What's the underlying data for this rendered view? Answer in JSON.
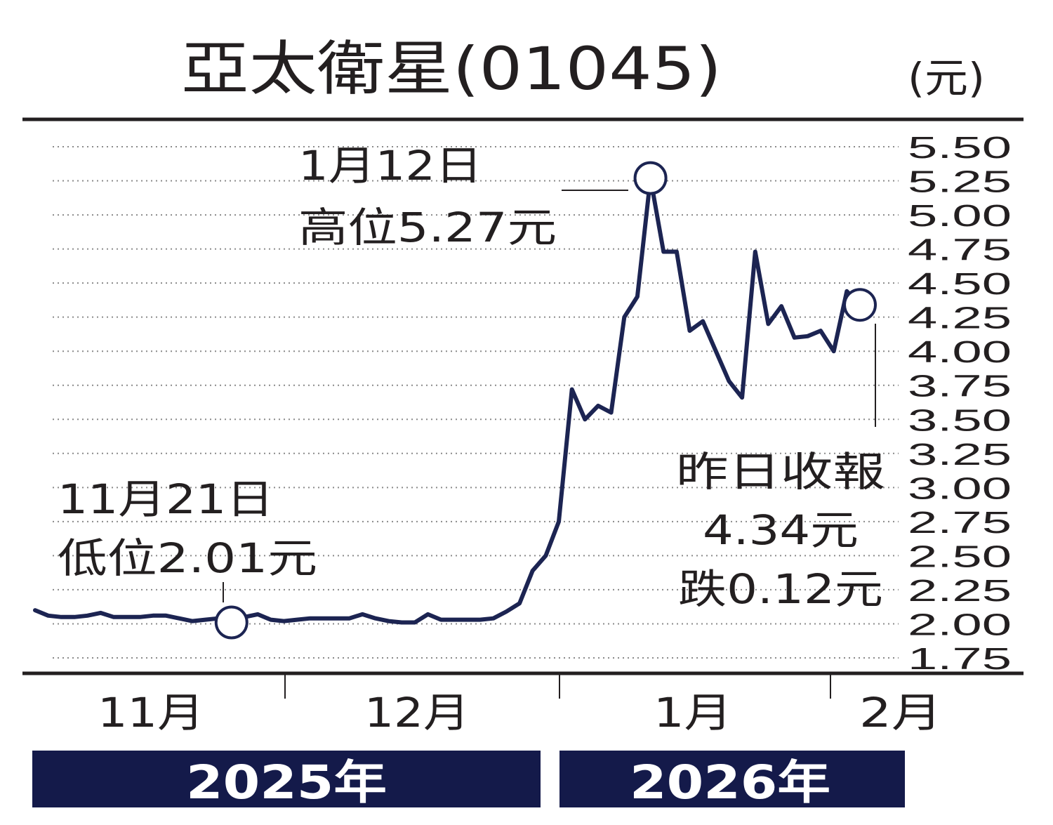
{
  "title": "亞太衛星(01045)",
  "unit": "(元)",
  "colors": {
    "line": "#1c2452",
    "year_band": "#141a4a",
    "text": "#231f20"
  },
  "annotations": {
    "high": {
      "date": "1月12日",
      "text": "高位5.27元"
    },
    "low": {
      "date": "11月21日",
      "text": "低位2.01元"
    },
    "close": {
      "line1": "昨日收報",
      "line2": "4.34元",
      "line3": "跌0.12元"
    }
  },
  "months": [
    "11月",
    "12月",
    "1月",
    "2月"
  ],
  "years": [
    "2025年",
    "2026年"
  ],
  "chart_data": {
    "type": "line",
    "title": "亞太衛星(01045)",
    "ylabel": "(元)",
    "ylim": [
      1.75,
      5.5
    ],
    "yticks": [
      "5.50",
      "5.25",
      "5.00",
      "4.75",
      "4.50",
      "4.25",
      "4.00",
      "3.75",
      "3.50",
      "3.25",
      "3.00",
      "2.75",
      "2.50",
      "2.25",
      "2.00",
      "1.75"
    ],
    "grid": true,
    "x_labels": [
      "11月",
      "12月",
      "1月",
      "2月"
    ],
    "series": [
      {
        "values": [
          2.1,
          2.06,
          2.05,
          2.05,
          2.06,
          2.08,
          2.05,
          2.05,
          2.05,
          2.06,
          2.06,
          2.04,
          2.02,
          2.03,
          2.04,
          2.01,
          2.05,
          2.07,
          2.03,
          2.02,
          2.03,
          2.04,
          2.04,
          2.04,
          2.04,
          2.07,
          2.04,
          2.02,
          2.01,
          2.01,
          2.07,
          2.03,
          2.03,
          2.03,
          2.03,
          2.04,
          2.09,
          2.15,
          2.39,
          2.5,
          2.75,
          3.72,
          3.5,
          3.6,
          3.55,
          4.25,
          4.4,
          5.27,
          4.73,
          4.73,
          4.15,
          4.22,
          4.0,
          3.78,
          3.66,
          4.73,
          4.2,
          4.33,
          4.1,
          4.11,
          4.15,
          4.0,
          4.44,
          4.34
        ]
      }
    ],
    "highlights": [
      {
        "label": "high",
        "index": 47,
        "value": 5.27
      },
      {
        "label": "low",
        "index": 15,
        "value": 2.01
      },
      {
        "label": "close",
        "index": 63,
        "value": 4.34
      }
    ]
  }
}
